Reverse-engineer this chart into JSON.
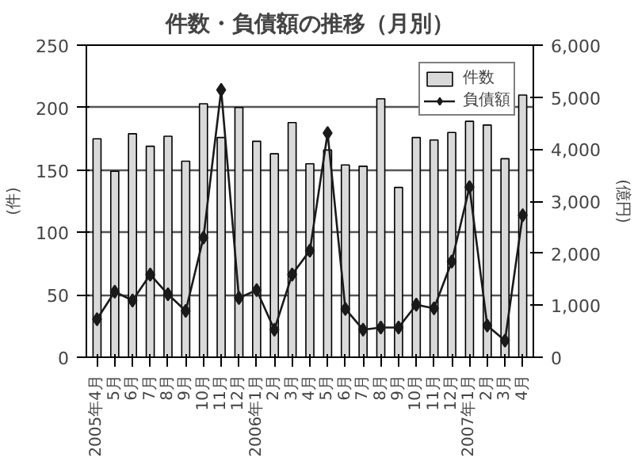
{
  "chart_data": {
    "type": "bar",
    "title": "件数・負債額の推移（月別）",
    "ylabel": "(件)",
    "y2label": "(億円)",
    "categories": [
      "2005年4月",
      "5月",
      "6月",
      "7月",
      "8月",
      "9月",
      "10月",
      "11月",
      "12月",
      "2006年1月",
      "2月",
      "3月",
      "4月",
      "5月",
      "6月",
      "7月",
      "8月",
      "9月",
      "10月",
      "11月",
      "12月",
      "2007年1月",
      "2月",
      "3月",
      "4月"
    ],
    "series": [
      {
        "name": "件数",
        "color": "#d9d9d9",
        "values": [
          175,
          149,
          179,
          169,
          177,
          157,
          203,
          176,
          200,
          173,
          163,
          188,
          155,
          166,
          154,
          153,
          207,
          136,
          176,
          174,
          180,
          189,
          186,
          159,
          210
        ]
      },
      {
        "name": "負債額",
        "type": "line",
        "axis": "y2",
        "color": "#1a1a1a",
        "values": [
          730,
          1260,
          1090,
          1590,
          1210,
          890,
          2300,
          5140,
          1140,
          1290,
          530,
          1590,
          2050,
          4310,
          930,
          530,
          570,
          570,
          1010,
          940,
          1840,
          3270,
          610,
          320,
          2730
        ]
      }
    ],
    "ylim": [
      0,
      250
    ],
    "yticks": [
      0,
      50,
      100,
      150,
      200,
      250
    ],
    "y2lim": [
      0,
      6000
    ],
    "y2ticks": [
      0,
      {
        "value": 1000,
        "label": "1,000"
      },
      {
        "value": 2000,
        "label": "2,000"
      },
      {
        "value": 3000,
        "label": "3,000"
      },
      {
        "value": 4000,
        "label": "4,000"
      },
      {
        "value": 5000,
        "label": "5,000"
      },
      {
        "value": 6000,
        "label": "6,000"
      }
    ],
    "grid": "y",
    "legend": "top right",
    "marker": "diamond",
    "line_style": "solid"
  }
}
